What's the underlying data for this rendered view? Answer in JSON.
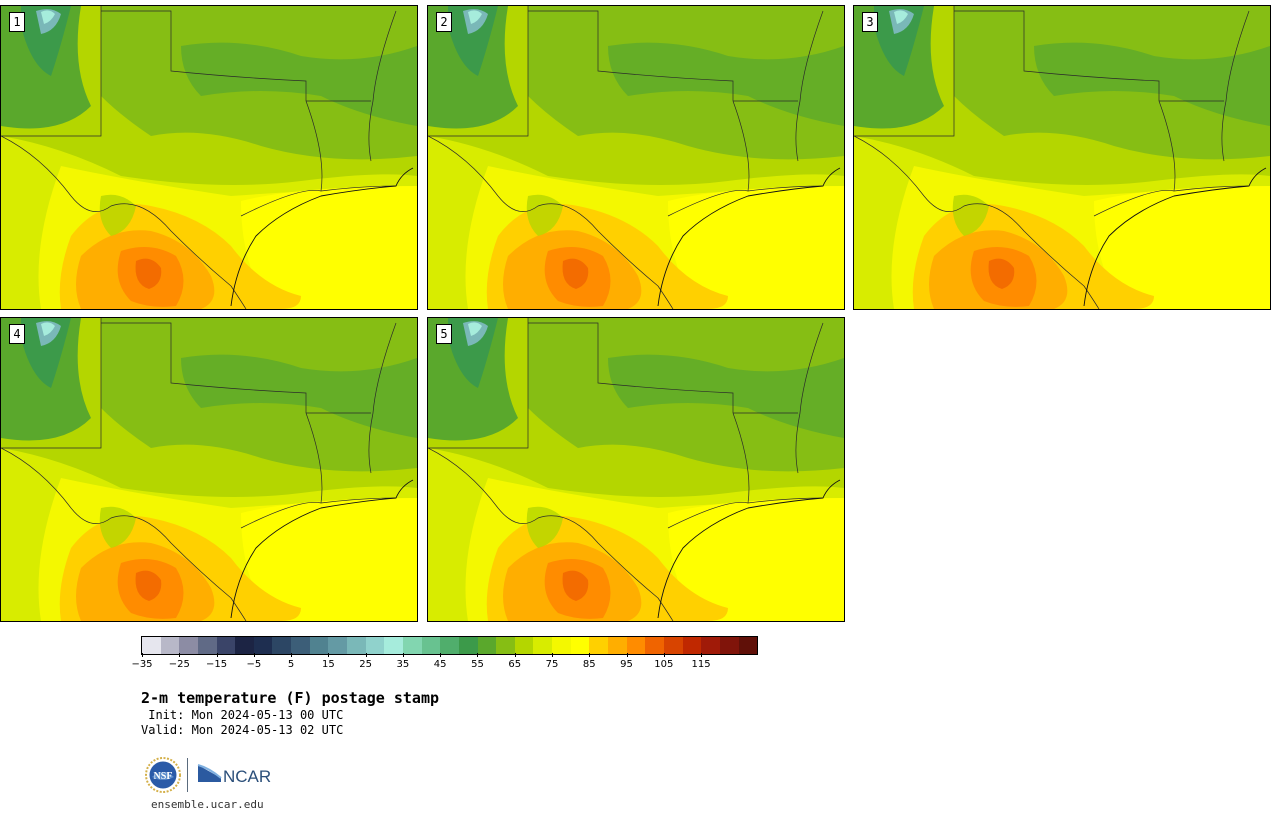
{
  "title": "2-m temperature (F) postage stamp",
  "init": " Init: Mon 2024-05-13 00 UTC",
  "valid": "Valid: Mon 2024-05-13 02 UTC",
  "site": "ensemble.ucar.edu",
  "logos": {
    "nsf": "NSF",
    "ncar": "NCAR"
  },
  "panels": [
    {
      "label": "1"
    },
    {
      "label": "2"
    },
    {
      "label": "3"
    },
    {
      "label": "4"
    },
    {
      "label": "5"
    }
  ],
  "colorbar": {
    "colors": [
      "#e6e6ee",
      "#b8b8c8",
      "#8c8ca4",
      "#606a86",
      "#3a4468",
      "#1c2444",
      "#1e2e50",
      "#2c4664",
      "#3c5e78",
      "#508290",
      "#649aa4",
      "#7ab8b8",
      "#90d2cc",
      "#a6ecdc",
      "#82d6b0",
      "#68c290",
      "#50ae6c",
      "#3c9a4a",
      "#5aa82c",
      "#86be14",
      "#b4d600",
      "#d8ec00",
      "#f4f800",
      "#ffff00",
      "#ffd000",
      "#ffae00",
      "#ff8c00",
      "#f06400",
      "#d84400",
      "#c02800",
      "#a01a08",
      "#80140a",
      "#601008"
    ],
    "tick_labels": [
      "−35",
      "−25",
      "−15",
      "−5",
      "5",
      "15",
      "25",
      "35",
      "45",
      "55",
      "65",
      "75",
      "85",
      "95",
      "105",
      "115"
    ],
    "range": [
      -40,
      125
    ]
  },
  "map_colors": {
    "dark_green": "#3c9a4a",
    "green": "#5aa82c",
    "mid_green": "#86be14",
    "yellow_green": "#b4d600",
    "lime": "#d8ec00",
    "light_yellow": "#f4f800",
    "yellow": "#ffff00",
    "amber": "#ffd000",
    "orange": "#ffae00",
    "dark_orange": "#ff8c00",
    "red_orange": "#f06400",
    "mountain": "#7ab8b8",
    "snow": "#a6ecdc"
  }
}
